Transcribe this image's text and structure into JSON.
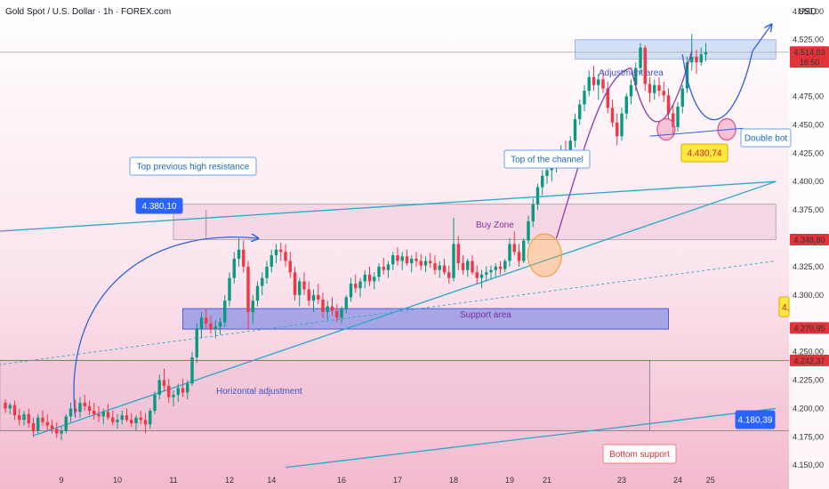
{
  "header": {
    "title": "Gold Spot / U.S. Dollar · 1h · FOREX.com",
    "currency": "USD"
  },
  "chart_data": {
    "type": "candlestick",
    "title": "Gold Spot / U.S. Dollar · 1h · FOREX.com",
    "ylim": [
      4140,
      4560
    ],
    "y_ticks": [
      "4.550,00",
      "4.525,00",
      "4.475,00",
      "4.450,00",
      "4.425,00",
      "4.400,00",
      "4.375,00",
      "4.325,00",
      "4.300,00",
      "4.250,00",
      "4.225,00",
      "4.200,00",
      "4.175,00",
      "4.150,00"
    ],
    "x_ticks": [
      {
        "label": "9",
        "i": 12
      },
      {
        "label": "10",
        "i": 24
      },
      {
        "label": "11",
        "i": 36
      },
      {
        "label": "12",
        "i": 48
      },
      {
        "label": "14",
        "i": 57
      },
      {
        "label": "16",
        "i": 72
      },
      {
        "label": "17",
        "i": 84
      },
      {
        "label": "18",
        "i": 96
      },
      {
        "label": "19",
        "i": 108
      },
      {
        "label": "21",
        "i": 116
      },
      {
        "label": "23",
        "i": 132
      },
      {
        "label": "24",
        "i": 144
      },
      {
        "label": "25",
        "i": 151
      }
    ],
    "candles": [
      [
        4205,
        4208,
        4196,
        4200
      ],
      [
        4200,
        4205,
        4195,
        4203
      ],
      [
        4203,
        4207,
        4190,
        4194
      ],
      [
        4194,
        4200,
        4185,
        4190
      ],
      [
        4190,
        4198,
        4185,
        4195
      ],
      [
        4195,
        4200,
        4183,
        4187
      ],
      [
        4187,
        4192,
        4175,
        4180
      ],
      [
        4180,
        4195,
        4178,
        4192
      ],
      [
        4192,
        4198,
        4185,
        4188
      ],
      [
        4188,
        4195,
        4180,
        4185
      ],
      [
        4185,
        4190,
        4178,
        4182
      ],
      [
        4182,
        4188,
        4174,
        4178
      ],
      [
        4178,
        4184,
        4172,
        4180
      ],
      [
        4180,
        4195,
        4178,
        4193
      ],
      [
        4193,
        4205,
        4188,
        4200
      ],
      [
        4200,
        4208,
        4195,
        4197
      ],
      [
        4197,
        4210,
        4192,
        4205
      ],
      [
        4205,
        4212,
        4198,
        4202
      ],
      [
        4202,
        4207,
        4194,
        4198
      ],
      [
        4198,
        4205,
        4190,
        4195
      ],
      [
        4195,
        4202,
        4188,
        4193
      ],
      [
        4193,
        4200,
        4186,
        4197
      ],
      [
        4197,
        4204,
        4190,
        4192
      ],
      [
        4192,
        4198,
        4185,
        4188
      ],
      [
        4188,
        4195,
        4182,
        4190
      ],
      [
        4190,
        4198,
        4186,
        4194
      ],
      [
        4194,
        4200,
        4188,
        4190
      ],
      [
        4190,
        4196,
        4184,
        4187
      ],
      [
        4187,
        4194,
        4180,
        4192
      ],
      [
        4192,
        4198,
        4186,
        4190
      ],
      [
        4190,
        4196,
        4178,
        4186
      ],
      [
        4186,
        4200,
        4182,
        4198
      ],
      [
        4198,
        4215,
        4195,
        4212
      ],
      [
        4212,
        4230,
        4208,
        4225
      ],
      [
        4225,
        4235,
        4215,
        4220
      ],
      [
        4220,
        4226,
        4205,
        4210
      ],
      [
        4210,
        4216,
        4202,
        4212
      ],
      [
        4212,
        4222,
        4206,
        4218
      ],
      [
        4218,
        4226,
        4210,
        4214
      ],
      [
        4214,
        4225,
        4208,
        4222
      ],
      [
        4222,
        4250,
        4220,
        4245
      ],
      [
        4245,
        4275,
        4240,
        4270
      ],
      [
        4270,
        4285,
        4262,
        4280
      ],
      [
        4280,
        4288,
        4270,
        4275
      ],
      [
        4275,
        4282,
        4266,
        4270
      ],
      [
        4270,
        4278,
        4262,
        4272
      ],
      [
        4272,
        4280,
        4265,
        4276
      ],
      [
        4276,
        4300,
        4272,
        4295
      ],
      [
        4295,
        4320,
        4290,
        4315
      ],
      [
        4315,
        4338,
        4310,
        4332
      ],
      [
        4332,
        4350,
        4325,
        4340
      ],
      [
        4340,
        4348,
        4320,
        4325
      ],
      [
        4325,
        4330,
        4270,
        4285
      ],
      [
        4285,
        4300,
        4275,
        4295
      ],
      [
        4295,
        4312,
        4290,
        4308
      ],
      [
        4308,
        4320,
        4300,
        4315
      ],
      [
        4315,
        4330,
        4310,
        4325
      ],
      [
        4325,
        4340,
        4320,
        4335
      ],
      [
        4335,
        4345,
        4328,
        4340
      ],
      [
        4340,
        4346,
        4330,
        4338
      ],
      [
        4338,
        4345,
        4325,
        4330
      ],
      [
        4330,
        4338,
        4315,
        4320
      ],
      [
        4320,
        4325,
        4295,
        4300
      ],
      [
        4300,
        4315,
        4290,
        4312
      ],
      [
        4312,
        4320,
        4300,
        4305
      ],
      [
        4305,
        4312,
        4290,
        4295
      ],
      [
        4295,
        4305,
        4285,
        4300
      ],
      [
        4300,
        4310,
        4292,
        4296
      ],
      [
        4296,
        4302,
        4280,
        4285
      ],
      [
        4285,
        4295,
        4278,
        4290
      ],
      [
        4290,
        4298,
        4282,
        4286
      ],
      [
        4286,
        4292,
        4276,
        4280
      ],
      [
        4280,
        4290,
        4275,
        4288
      ],
      [
        4288,
        4300,
        4284,
        4298
      ],
      [
        4298,
        4315,
        4294,
        4310
      ],
      [
        4310,
        4318,
        4302,
        4306
      ],
      [
        4306,
        4315,
        4298,
        4312
      ],
      [
        4312,
        4322,
        4306,
        4318
      ],
      [
        4318,
        4325,
        4308,
        4312
      ],
      [
        4312,
        4320,
        4305,
        4316
      ],
      [
        4316,
        4328,
        4312,
        4325
      ],
      [
        4325,
        4333,
        4318,
        4322
      ],
      [
        4322,
        4330,
        4315,
        4327
      ],
      [
        4327,
        4338,
        4322,
        4335
      ],
      [
        4335,
        4342,
        4326,
        4330
      ],
      [
        4330,
        4338,
        4322,
        4334
      ],
      [
        4334,
        4340,
        4326,
        4328
      ],
      [
        4328,
        4335,
        4320,
        4332
      ],
      [
        4332,
        4338,
        4325,
        4330
      ],
      [
        4330,
        4336,
        4322,
        4326
      ],
      [
        4326,
        4334,
        4320,
        4330
      ],
      [
        4330,
        4337,
        4324,
        4328
      ],
      [
        4328,
        4335,
        4318,
        4322
      ],
      [
        4322,
        4330,
        4315,
        4326
      ],
      [
        4326,
        4332,
        4318,
        4320
      ],
      [
        4320,
        4326,
        4310,
        4315
      ],
      [
        4315,
        4368,
        4312,
        4345
      ],
      [
        4345,
        4352,
        4322,
        4328
      ],
      [
        4328,
        4335,
        4318,
        4322
      ],
      [
        4322,
        4332,
        4316,
        4330
      ],
      [
        4330,
        4335,
        4318,
        4320
      ],
      [
        4320,
        4326,
        4310,
        4315
      ],
      [
        4315,
        4322,
        4306,
        4318
      ],
      [
        4318,
        4325,
        4312,
        4320
      ],
      [
        4320,
        4326,
        4314,
        4322
      ],
      [
        4322,
        4328,
        4316,
        4325
      ],
      [
        4325,
        4330,
        4318,
        4323
      ],
      [
        4323,
        4332,
        4320,
        4330
      ],
      [
        4330,
        4350,
        4325,
        4345
      ],
      [
        4345,
        4356,
        4335,
        4338
      ],
      [
        4338,
        4345,
        4325,
        4330
      ],
      [
        4330,
        4350,
        4328,
        4348
      ],
      [
        4348,
        4370,
        4345,
        4365
      ],
      [
        4365,
        4385,
        4360,
        4380
      ],
      [
        4380,
        4398,
        4375,
        4395
      ],
      [
        4395,
        4410,
        4388,
        4405
      ],
      [
        4405,
        4415,
        4398,
        4410
      ],
      [
        4410,
        4418,
        4400,
        4415
      ],
      [
        4415,
        4425,
        4408,
        4420
      ],
      [
        4420,
        4432,
        4415,
        4428
      ],
      [
        4428,
        4436,
        4420,
        4426
      ],
      [
        4426,
        4440,
        4422,
        4436
      ],
      [
        4436,
        4460,
        4430,
        4455
      ],
      [
        4455,
        4472,
        4450,
        4468
      ],
      [
        4468,
        4485,
        4462,
        4480
      ],
      [
        4480,
        4498,
        4475,
        4492
      ],
      [
        4492,
        4502,
        4480,
        4485
      ],
      [
        4485,
        4495,
        4472,
        4490
      ],
      [
        4490,
        4498,
        4478,
        4482
      ],
      [
        4482,
        4488,
        4460,
        4465
      ],
      [
        4465,
        4472,
        4448,
        4452
      ],
      [
        4452,
        4460,
        4432,
        4440
      ],
      [
        4440,
        4465,
        4436,
        4460
      ],
      [
        4460,
        4478,
        4455,
        4475
      ],
      [
        4475,
        4490,
        4468,
        4485
      ],
      [
        4485,
        4505,
        4480,
        4500
      ],
      [
        4500,
        4522,
        4495,
        4518
      ],
      [
        4518,
        4520,
        4480,
        4486
      ],
      [
        4486,
        4492,
        4470,
        4478
      ],
      [
        4478,
        4490,
        4472,
        4485
      ],
      [
        4485,
        4492,
        4475,
        4480
      ],
      [
        4480,
        4488,
        4470,
        4476
      ],
      [
        4476,
        4482,
        4455,
        4460
      ],
      [
        4460,
        4468,
        4440,
        4448
      ],
      [
        4448,
        4470,
        4444,
        4466
      ],
      [
        4466,
        4485,
        4460,
        4482
      ],
      [
        4482,
        4510,
        4478,
        4505
      ],
      [
        4505,
        4530,
        4498,
        4510
      ],
      [
        4510,
        4516,
        4495,
        4505
      ],
      [
        4505,
        4518,
        4502,
        4512
      ],
      [
        4512,
        4522,
        4506,
        4514
      ]
    ],
    "lines": [
      {
        "name": "channel-top-line",
        "from": [
          -6,
          4355
        ],
        "to": [
          165,
          4400
        ],
        "color": "#26a8c9"
      },
      {
        "name": "channel-bottom-line",
        "from": [
          6,
          4176
        ],
        "to": [
          165,
          4400
        ],
        "color": "#26a8c9"
      },
      {
        "name": "lower-channel-line",
        "from": [
          60,
          4148
        ],
        "to": [
          165,
          4200
        ],
        "color": "#26a8c9"
      },
      {
        "name": "trend-line-dotted",
        "from": [
          -6,
          4236
        ],
        "to": [
          165,
          4330
        ],
        "color": "#26a8c9",
        "dash": true
      }
    ],
    "zones": [
      {
        "name": "resistance-zone",
        "y0": 4348.8,
        "y1": 4380.1,
        "i0": 36,
        "i1": 165,
        "fill": "rgba(233,180,205,0.35)",
        "stroke": "#b8a8b0"
      },
      {
        "name": "support-area-zone",
        "y0": 4270,
        "y1": 4288,
        "i0": 38,
        "i1": 142,
        "fill": "rgba(100,120,230,0.55)",
        "stroke": "#4c5bd6"
      },
      {
        "name": "adjustment-area-zone",
        "y0": 4508,
        "y1": 4525,
        "i0": 122,
        "i1": 165,
        "fill": "rgba(180,205,240,0.6)",
        "stroke": "#9fb8e6"
      },
      {
        "name": "bottom-range-zone",
        "y0": 4180.4,
        "y1": 4242.4,
        "i0": -6,
        "i1": 138,
        "fill": "rgba(233,180,205,0.25)",
        "stroke": "#c9a0b0"
      }
    ],
    "price_labels": [
      {
        "text": "4.514,03",
        "sub": "16:50",
        "value": 4514.03,
        "color": "#e2323a"
      },
      {
        "text": "4.348,80",
        "value": 4348.8,
        "color": "#e2323a"
      },
      {
        "text": "4.270,95",
        "value": 4270.95,
        "color": "#e2323a"
      },
      {
        "text": "4.242,37",
        "value": 4242.37,
        "color": "#e2323a"
      }
    ],
    "annotations": [
      {
        "text": "Top previous high resistance",
        "kind": "box",
        "color": "#1e66d0"
      },
      {
        "text": "Top of the channel",
        "kind": "box",
        "color": "#1e66d0"
      },
      {
        "text": "Adjustment area",
        "kind": "plain",
        "color": "#3b56c9"
      },
      {
        "text": "Buy Zone",
        "kind": "plain",
        "color": "#8a2da0"
      },
      {
        "text": "Support area",
        "kind": "plain",
        "color": "#7a2ca0"
      },
      {
        "text": "Horizontal adjustment",
        "kind": "plain",
        "color": "#3b56c9"
      },
      {
        "text": "Double bot",
        "kind": "box",
        "color": "#1e66d0"
      },
      {
        "text": "Bottom support",
        "kind": "box",
        "color": "#e2323a"
      },
      {
        "text": "4.430,74",
        "kind": "yellow"
      },
      {
        "text": "4.380,10",
        "kind": "blue"
      },
      {
        "text": "4.180,39",
        "kind": "blue"
      },
      {
        "text": "4.",
        "kind": "yellow-edge"
      }
    ],
    "grid": false
  }
}
